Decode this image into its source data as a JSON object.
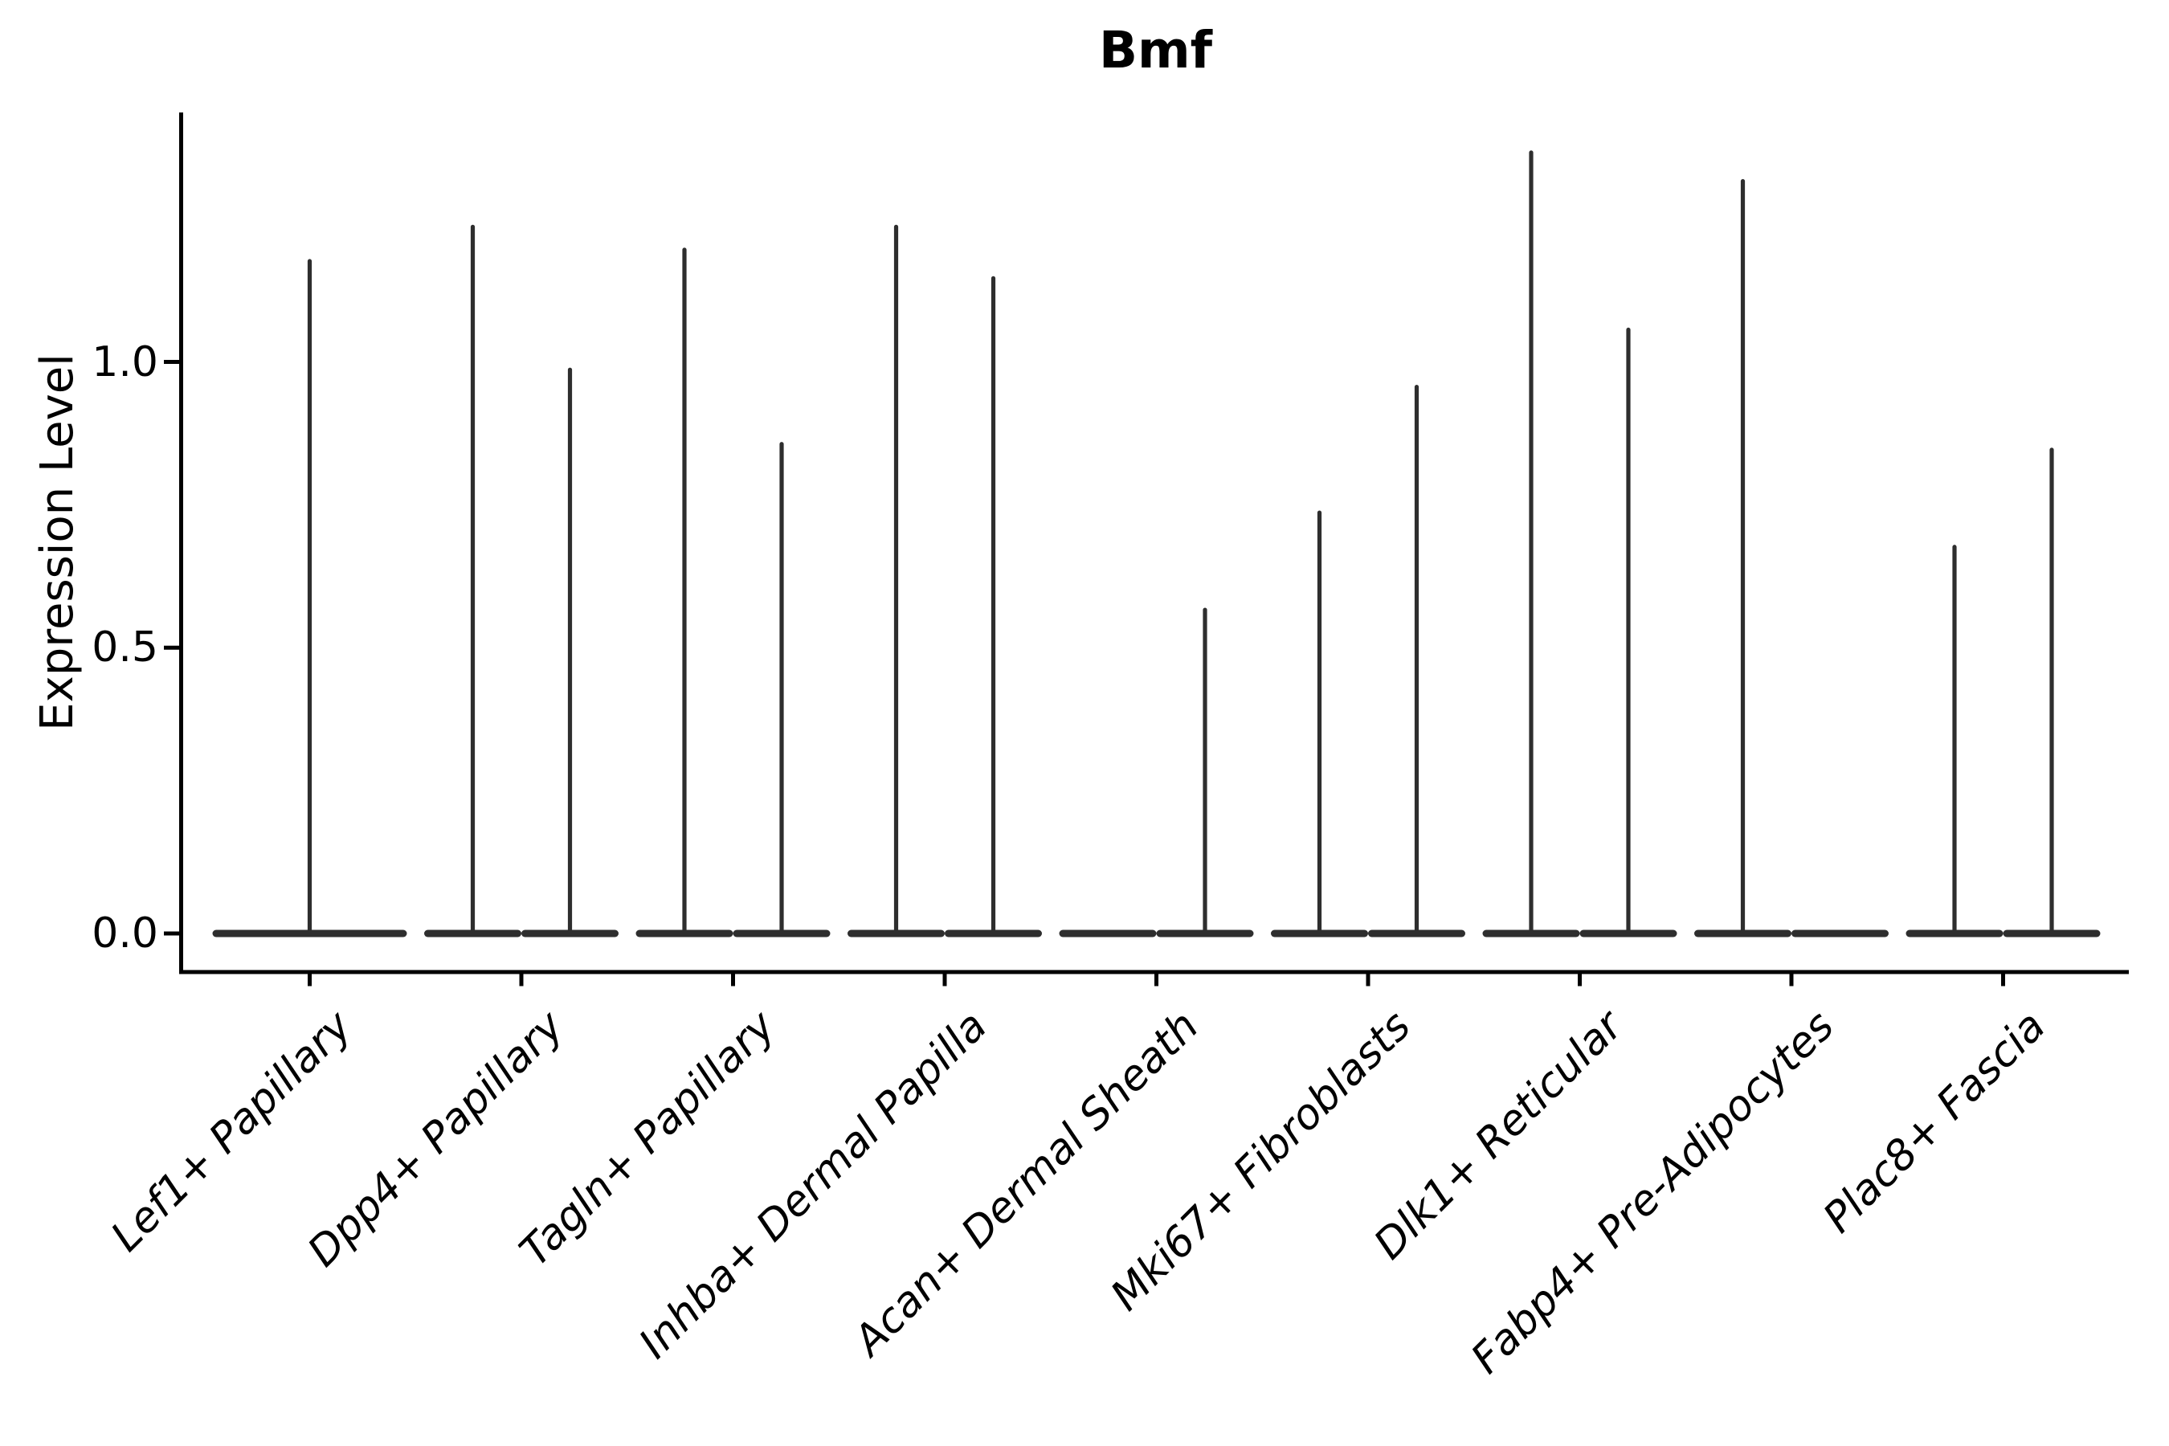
{
  "chart_data": {
    "type": "violin",
    "title": "Bmf",
    "xlabel": "",
    "ylabel": "Expression Level",
    "yticks": [
      0.0,
      0.5,
      1.0
    ],
    "ylim": [
      -0.07,
      1.44
    ],
    "grid": false,
    "legend": null,
    "categories": [
      "Lef1+ Papillary",
      "Dpp4+ Papillary",
      "Tagln+ Papillary",
      "Inhba+ Dermal Papilla",
      "Acan+ Dermal Sheath",
      "Mki67+ Fibroblasts",
      "Dlk1+ Reticular",
      "Fabp4+ Pre-Adipocytes",
      "Plac8+ Fascia"
    ],
    "groups": [
      {
        "category": "Lef1+ Papillary",
        "violins": [
          {
            "slot": "center",
            "width": "full",
            "max_expression": 1.18
          }
        ]
      },
      {
        "category": "Dpp4+ Papillary",
        "violins": [
          {
            "slot": "left",
            "width": "half",
            "max_expression": 1.24
          },
          {
            "slot": "right",
            "width": "half",
            "max_expression": 0.99
          }
        ]
      },
      {
        "category": "Tagln+ Papillary",
        "violins": [
          {
            "slot": "left",
            "width": "half",
            "max_expression": 1.2
          },
          {
            "slot": "right",
            "width": "half",
            "max_expression": 0.86
          }
        ]
      },
      {
        "category": "Inhba+ Dermal Papilla",
        "violins": [
          {
            "slot": "left",
            "width": "half",
            "max_expression": 1.24
          },
          {
            "slot": "right",
            "width": "half",
            "max_expression": 1.15
          }
        ]
      },
      {
        "category": "Acan+ Dermal Sheath",
        "violins": [
          {
            "slot": "left",
            "width": "half",
            "max_expression": 0.0
          },
          {
            "slot": "right",
            "width": "half",
            "max_expression": 0.57
          }
        ]
      },
      {
        "category": "Mki67+ Fibroblasts",
        "violins": [
          {
            "slot": "left",
            "width": "half",
            "max_expression": 0.74
          },
          {
            "slot": "right",
            "width": "half",
            "max_expression": 0.96
          }
        ]
      },
      {
        "category": "Dlk1+ Reticular",
        "violins": [
          {
            "slot": "left",
            "width": "half",
            "max_expression": 1.37
          },
          {
            "slot": "right",
            "width": "half",
            "max_expression": 1.06
          }
        ]
      },
      {
        "category": "Fabp4+ Pre-Adipocytes",
        "violins": [
          {
            "slot": "left",
            "width": "half",
            "max_expression": 1.32
          },
          {
            "slot": "right",
            "width": "half",
            "max_expression": 0.0
          }
        ]
      },
      {
        "category": "Plac8+ Fascia",
        "violins": [
          {
            "slot": "left",
            "width": "half",
            "max_expression": 0.68
          },
          {
            "slot": "right",
            "width": "half",
            "max_expression": 0.85
          }
        ]
      }
    ],
    "style": {
      "violin_color": "#2e2e2e",
      "axis_color": "#000000",
      "background": "#ffffff"
    }
  }
}
